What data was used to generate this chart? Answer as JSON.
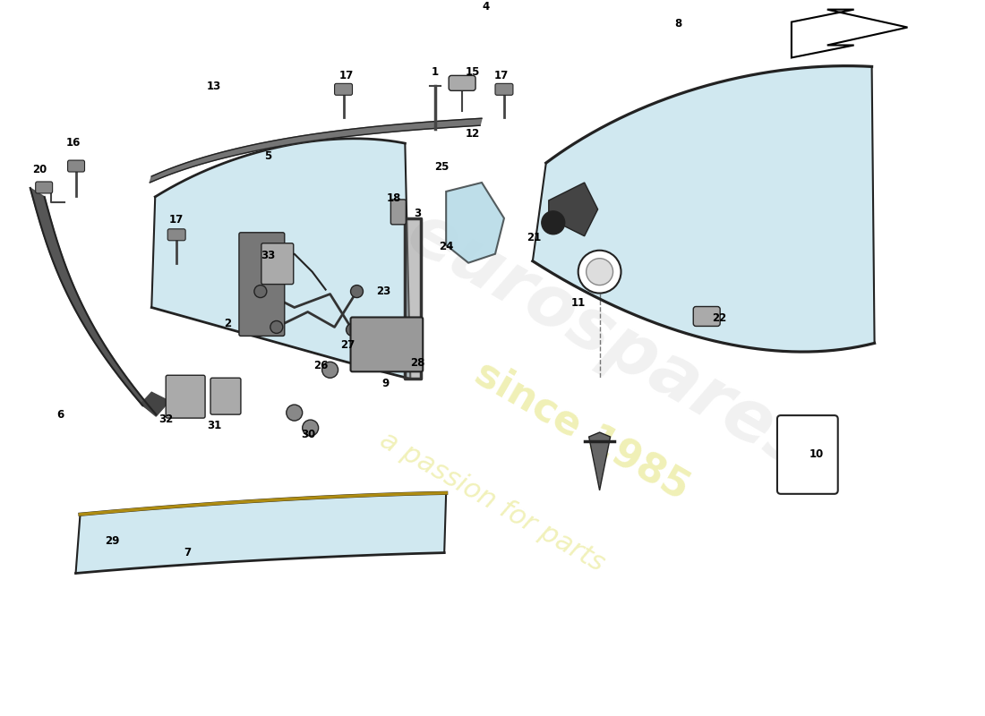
{
  "bg": "#ffffff",
  "glass_color": "#b8dce8",
  "glass_alpha": 0.65,
  "edge_color": "#222222",
  "metal_color": "#888888",
  "dark_metal": "#555555",
  "lw": 1.5,
  "wm1": "eurospares",
  "wm2": "since 1985",
  "wm3": "a passion for parts"
}
